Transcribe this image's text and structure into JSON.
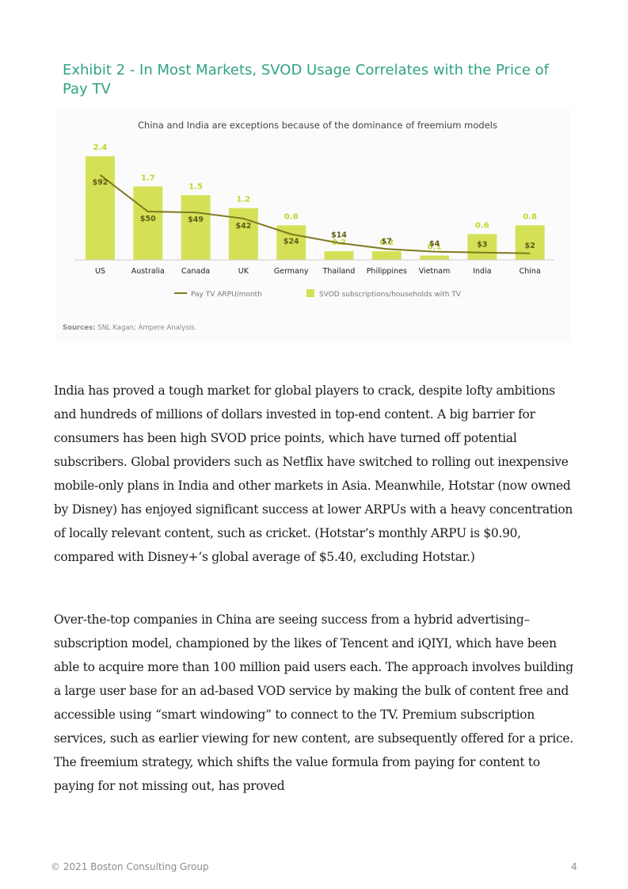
{
  "exhibit": {
    "title": "Exhibit 2 - In Most Markets, SVOD Usage Correlates with the Price of Pay TV"
  },
  "chart_data": {
    "type": "bar",
    "subtitle": "China and India are exceptions because of the dominance of freemium models",
    "categories": [
      "US",
      "Australia",
      "Canada",
      "UK",
      "Germany",
      "Thailand",
      "Philippines",
      "Vietnam",
      "India",
      "China"
    ],
    "series": [
      {
        "name": "SVOD subscriptions/households with TV",
        "kind": "bar",
        "color": "#d4e157",
        "values": [
          2.4,
          1.7,
          1.5,
          1.2,
          0.8,
          0.2,
          0.2,
          0.1,
          0.6,
          0.8
        ],
        "labels": [
          "2.4",
          "1.7",
          "1.5",
          "1.2",
          "0.8",
          "0.2",
          "0.2",
          "0.1",
          "0.6",
          "0.8"
        ]
      },
      {
        "name": "Pay TV ARPU/month",
        "kind": "line",
        "color": "#7d7a1e",
        "values": [
          92,
          50,
          49,
          42,
          24,
          14,
          7,
          4,
          3,
          2
        ],
        "labels": [
          "$92",
          "$50",
          "$49",
          "$42",
          "$24",
          "$14",
          "$7",
          "$4",
          "$3",
          "$2"
        ]
      }
    ],
    "legend_position": "bottom",
    "grid": false
  },
  "sources": {
    "label": "Sources:",
    "text": "SNL Kagan; Ampere Analysis."
  },
  "body": {
    "paragraph_1": "India has proved a tough market for global players to crack, despite lofty ambitions and hundreds of millions of dollars invested in top-end content. A big barrier for consumers has been high SVOD price points, which have turned off potential subscribers. Global providers such as Netflix have switched to rolling out inexpensive mobile-only plans in India and other markets in Asia. Meanwhile, Hotstar (now owned by Disney) has enjoyed significant success at lower ARPUs with a heavy concentration of locally relevant content, such as cricket. (Hotstar’s monthly ARPU is $0.90, compared with Disney+’s global average of $5.40, excluding Hotstar.)",
    "paragraph_2": "Over-the-top companies in China are seeing success from a hybrid advertising–subscription model, championed by the likes of Tencent and iQIYI, which have been able to acquire more than 100 million paid users each. The approach involves building a large user base for an ad-based VOD service by making the bulk of content free and accessible using “smart windowing” to connect to the TV. Premium subscription services, such as earlier viewing for new content, are subsequently offered for a price. The freemium strategy, which shifts the value formula from paying for content to paying for not missing out, has proved"
  },
  "footer": {
    "copyright": "© 2021 Boston Consulting Group",
    "page_number": "4"
  }
}
